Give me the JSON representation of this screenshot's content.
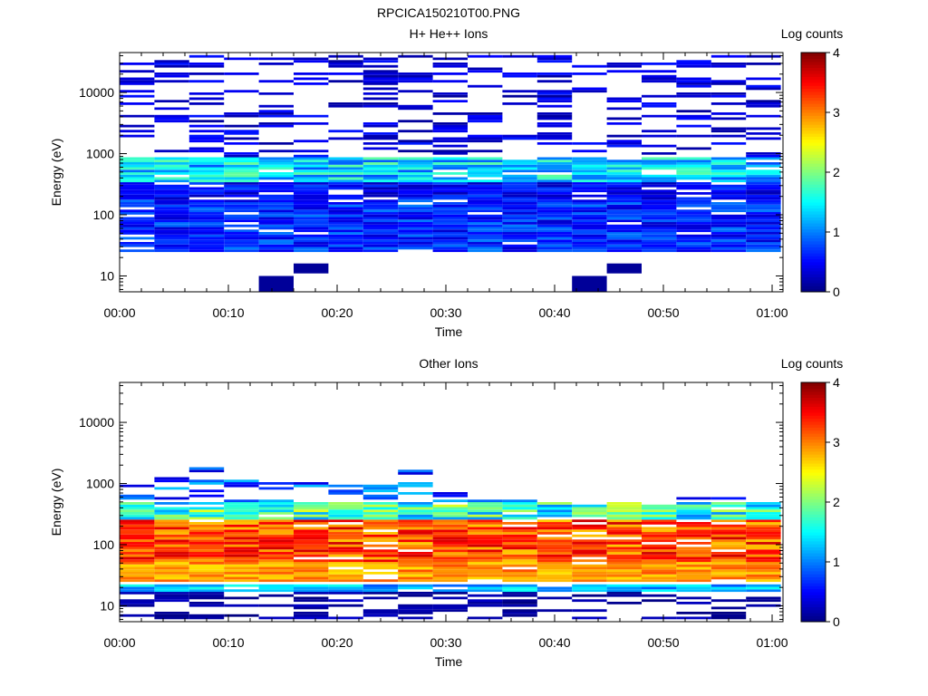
{
  "figure": {
    "title": "RPCICA150210T00.PNG"
  },
  "chart_data": [
    {
      "type": "heatmap",
      "title": "H+ He++ Ions",
      "xlabel": "Time",
      "ylabel": "Energy (eV)",
      "colorbar_label": "Log counts",
      "x_tick_labels": [
        "00:00",
        "00:10",
        "00:20",
        "00:30",
        "00:40",
        "00:50",
        "01:00"
      ],
      "x_tick_minutes": [
        0,
        10,
        20,
        30,
        40,
        50,
        60
      ],
      "xlim_minutes": [
        0,
        61
      ],
      "y_scale": "log",
      "y_tick_labels": [
        "10",
        "100",
        "1000",
        "10000"
      ],
      "y_tick_values": [
        10,
        100,
        1000,
        10000
      ],
      "ylim": [
        5.5,
        45000
      ],
      "colorbar_ticks": [
        "0",
        "1",
        "2",
        "3",
        "4"
      ],
      "colorbar_range": [
        0,
        4
      ],
      "colormap": "jet",
      "time_bins": 19,
      "bin_minutes": 3.2,
      "energy_bands_approx": [
        {
          "energy_range": [
            25,
            180
          ],
          "log_counts": [
            0.3,
            1.0
          ]
        },
        {
          "energy_range": [
            180,
            350
          ],
          "log_counts": [
            0.2,
            0.8
          ]
        },
        {
          "energy_range": [
            350,
            850
          ],
          "log_counts": [
            0.8,
            1.9
          ]
        },
        {
          "energy_range": [
            850,
            40000
          ],
          "log_counts": [
            0.1,
            0.6
          ],
          "coverage": "sparse"
        },
        {
          "energy_range": [
            6,
            16
          ],
          "log_counts": [
            0.0,
            0.3
          ],
          "coverage": "isolated"
        }
      ],
      "isolated_low_energy_minutes": [
        14.5,
        17.5,
        43.5,
        46.5
      ]
    },
    {
      "type": "heatmap",
      "title": "Other Ions",
      "xlabel": "Time",
      "ylabel": "Energy (eV)",
      "colorbar_label": "Log counts",
      "x_tick_labels": [
        "00:00",
        "00:10",
        "00:20",
        "00:30",
        "00:40",
        "00:50",
        "01:00"
      ],
      "x_tick_minutes": [
        0,
        10,
        20,
        30,
        40,
        50,
        60
      ],
      "xlim_minutes": [
        0,
        61
      ],
      "y_scale": "log",
      "y_tick_labels": [
        "10",
        "100",
        "1000",
        "10000"
      ],
      "y_tick_values": [
        10,
        100,
        1000,
        10000
      ],
      "ylim": [
        5.5,
        45000
      ],
      "colorbar_ticks": [
        "0",
        "1",
        "2",
        "3",
        "4"
      ],
      "colorbar_range": [
        0,
        4
      ],
      "colormap": "jet",
      "time_bins": 19,
      "bin_minutes": 3.2,
      "energy_bands_approx": [
        {
          "energy_range": [
            25,
            50
          ],
          "log_counts": [
            2.6,
            3.2
          ]
        },
        {
          "energy_range": [
            50,
            250
          ],
          "log_counts": [
            2.7,
            3.7
          ]
        },
        {
          "energy_range": [
            250,
            500
          ],
          "log_counts": [
            1.0,
            2.4
          ]
        },
        {
          "energy_range": [
            500,
            2500
          ],
          "log_counts": [
            0.3,
            1.3
          ],
          "coverage": "sparse"
        },
        {
          "energy_range": [
            17,
            22
          ],
          "log_counts": [
            0.8,
            1.6
          ]
        },
        {
          "energy_range": [
            6,
            17
          ],
          "log_counts": [
            0.0,
            0.3
          ],
          "coverage": "partial"
        }
      ],
      "max_energy_per_bin": [
        1300,
        1250,
        2300,
        1700,
        1150,
        1150,
        1450,
        1350,
        2000,
        950,
        550,
        550,
        600,
        550,
        550,
        450,
        700,
        650,
        600
      ]
    }
  ]
}
